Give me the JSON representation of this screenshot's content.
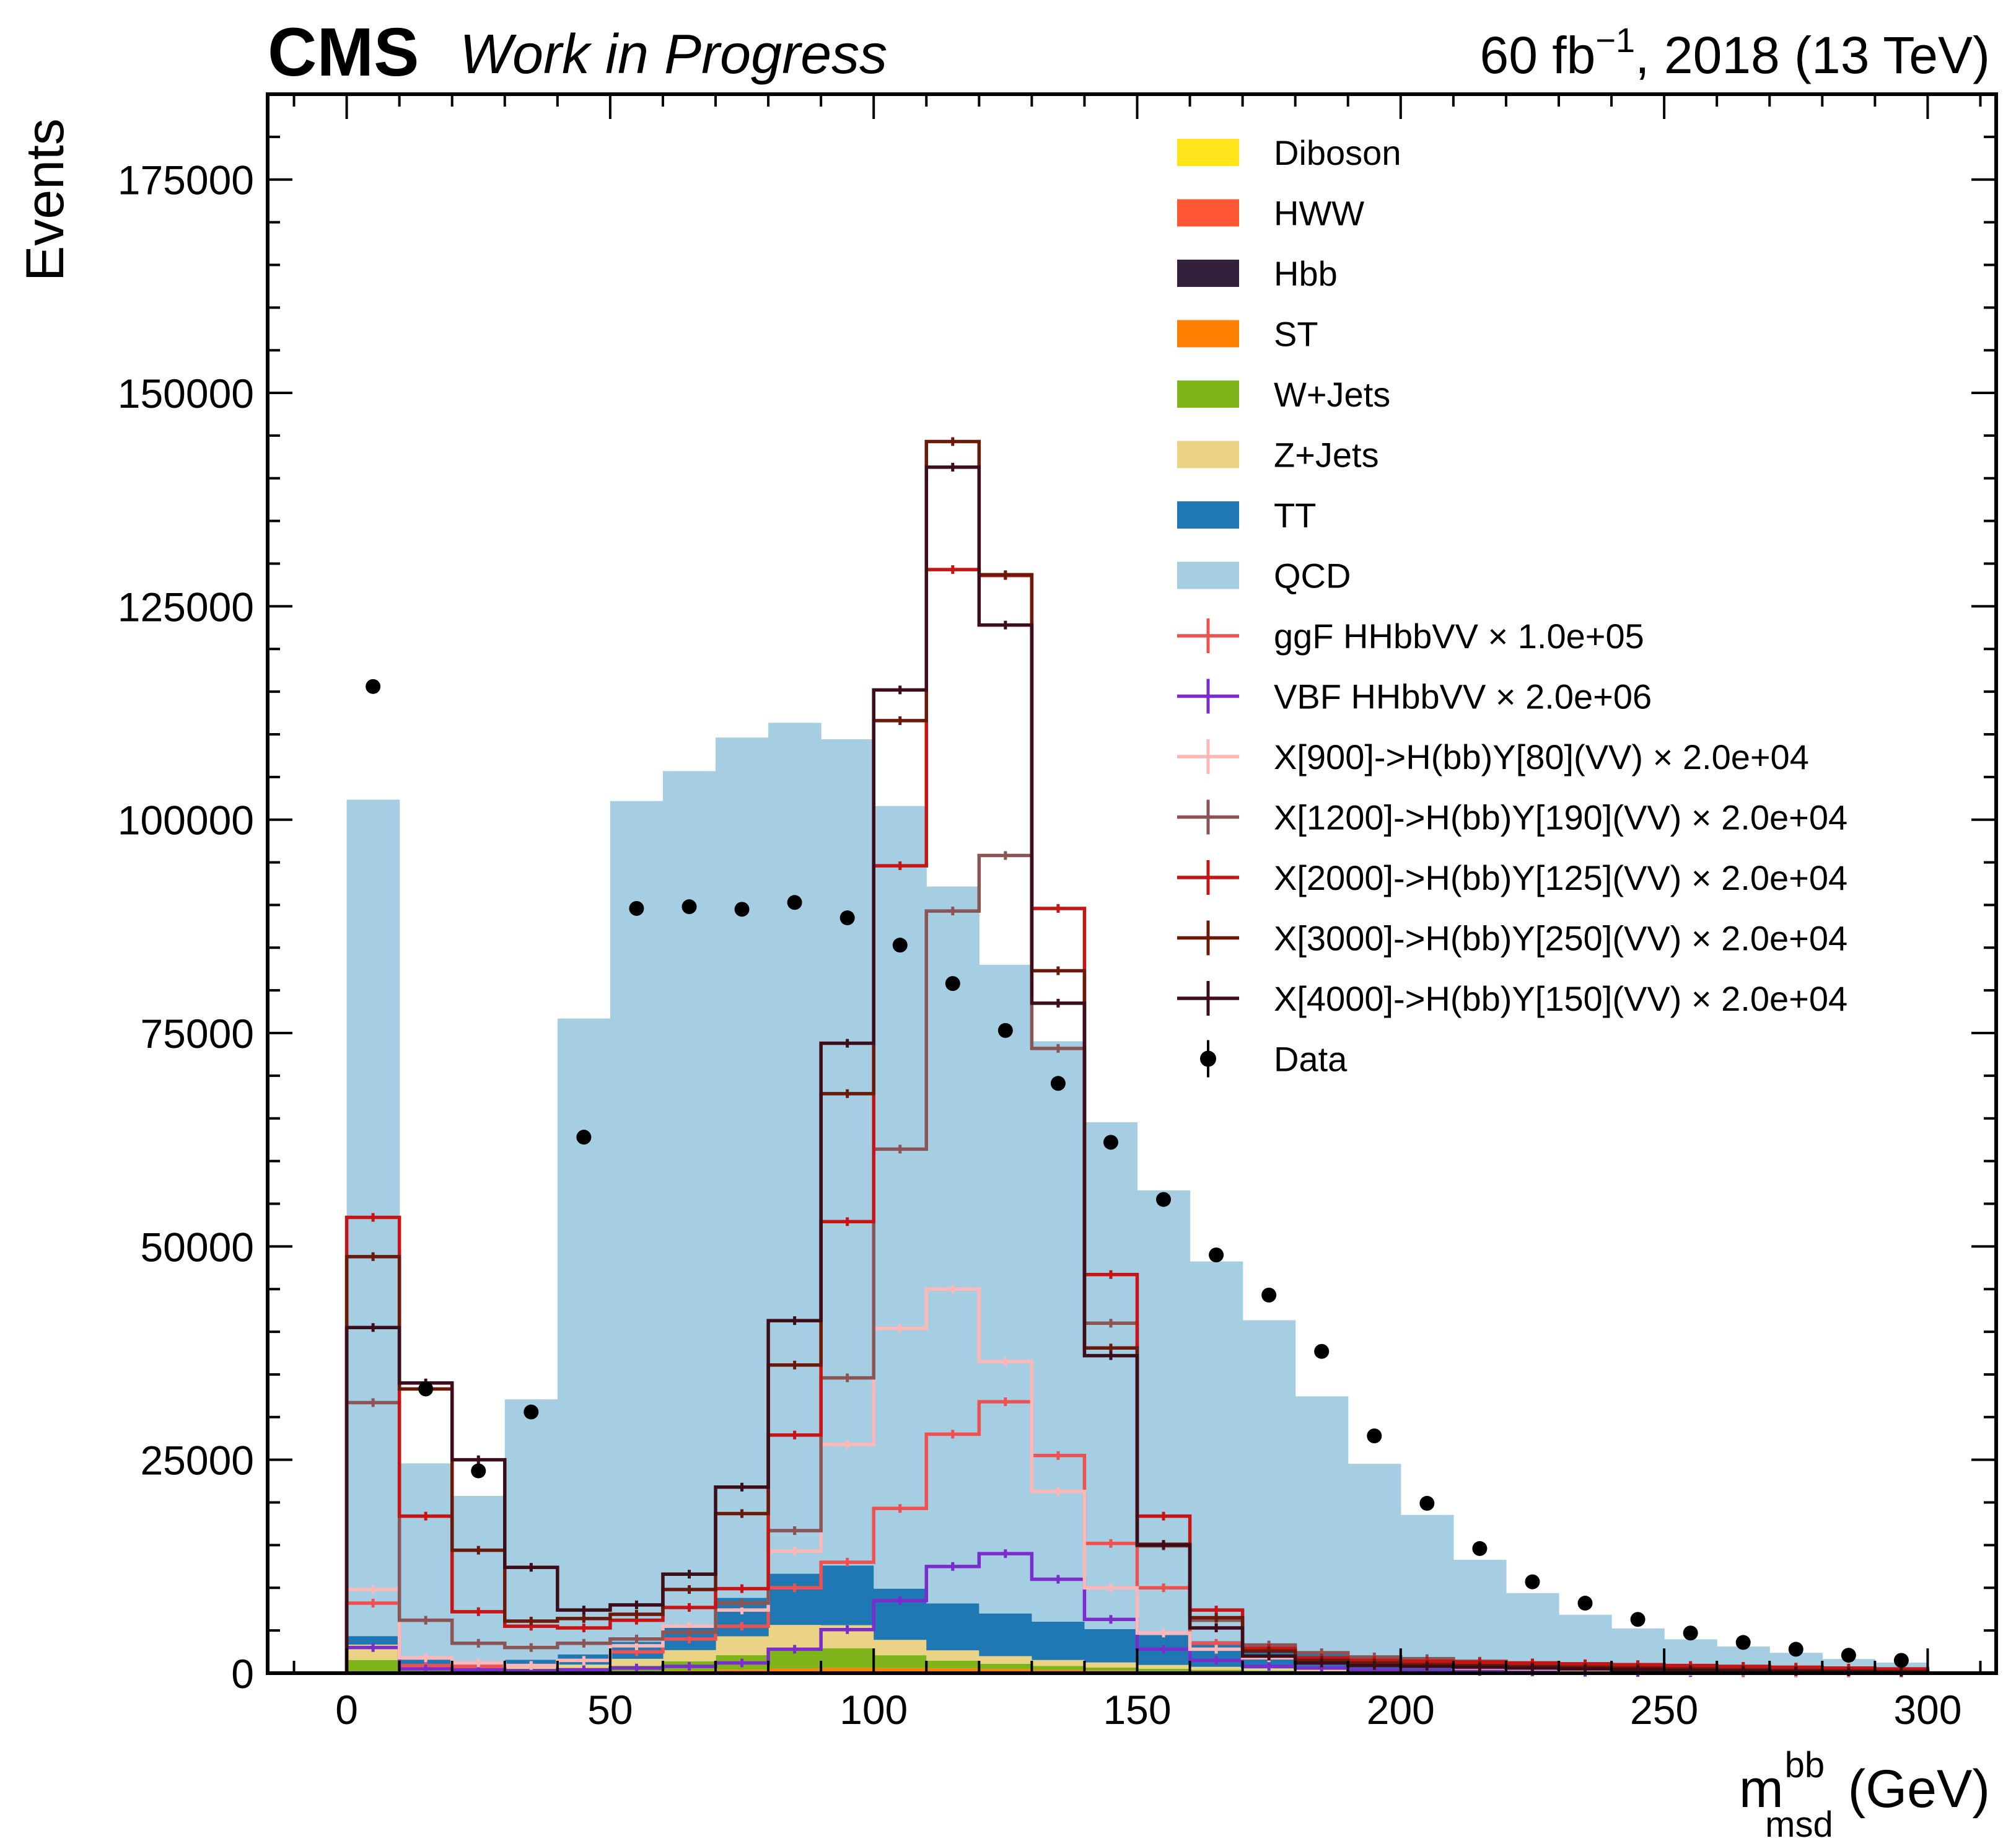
{
  "header": {
    "experiment": "CMS",
    "status": "Work in Progress",
    "lumi_prefix": "60 fb",
    "lumi_sup": "−1",
    "lumi_suffix": ", 2018 (13 TeV)"
  },
  "chart_data": {
    "type": "histogram",
    "title": "",
    "xlabel_main": "m",
    "xlabel_sup": "bb",
    "xlabel_sub": "msd",
    "xlabel_unit": " (GeV)",
    "ylabel": "Events",
    "xlim": [
      -15,
      313
    ],
    "ylim": [
      0,
      185000
    ],
    "x_ticks": [
      0,
      50,
      100,
      150,
      200,
      250,
      300
    ],
    "y_ticks": [
      0,
      25000,
      50000,
      75000,
      100000,
      125000,
      150000,
      175000
    ],
    "bin_edges": [
      0,
      10,
      20,
      30,
      40,
      50,
      60,
      70,
      80,
      90,
      100,
      110,
      120,
      130,
      140,
      150,
      160,
      170,
      180,
      190,
      200,
      210,
      220,
      230,
      240,
      250,
      260,
      270,
      280,
      290,
      300
    ],
    "stack_order": [
      "Diboson",
      "HWW",
      "Hbb",
      "ST",
      "W+Jets",
      "Z+Jets",
      "TT",
      "QCD"
    ],
    "backgrounds": [
      {
        "name": "QCD",
        "color": "#a6cee3",
        "values": [
          98000,
          23000,
          19500,
          30500,
          74500,
          98500,
          100000,
          100800,
          99700,
          96800,
          91700,
          84000,
          76000,
          68000,
          59400,
          52100,
          44500,
          38300,
          30000,
          22700,
          17300,
          12500,
          8900,
          6500,
          5000,
          3800,
          3000,
          2300,
          1600,
          1200
        ]
      },
      {
        "name": "TT",
        "color": "#1f78b4",
        "values": [
          1000,
          500,
          400,
          700,
          1200,
          2000,
          3000,
          4500,
          6000,
          7000,
          6000,
          5500,
          5000,
          4500,
          3900,
          3500,
          3000,
          2500,
          2000,
          1500,
          1000,
          600,
          350,
          250,
          180,
          120,
          90,
          60,
          40,
          30
        ]
      },
      {
        "name": "Z+Jets",
        "color": "#ebd386",
        "values": [
          1800,
          600,
          500,
          500,
          500,
          800,
          1300,
          2200,
          2800,
          2700,
          1800,
          1200,
          900,
          700,
          600,
          450,
          350,
          250,
          200,
          150,
          100,
          80,
          60,
          40,
          30,
          20,
          15,
          10,
          8,
          5
        ]
      },
      {
        "name": "W+Jets",
        "color": "#7fb51b",
        "values": [
          1400,
          400,
          300,
          300,
          400,
          700,
          1100,
          1700,
          2300,
          2300,
          1500,
          900,
          600,
          450,
          350,
          280,
          220,
          170,
          130,
          100,
          80,
          60,
          40,
          30,
          20,
          15,
          10,
          8,
          6,
          4
        ]
      },
      {
        "name": "ST",
        "color": "#ff7f00",
        "values": [
          100,
          60,
          50,
          60,
          80,
          150,
          250,
          350,
          450,
          500,
          450,
          400,
          350,
          300,
          250,
          200,
          150,
          120,
          90,
          70,
          50,
          35,
          25,
          18,
          12,
          8,
          6,
          4,
          3,
          2
        ]
      },
      {
        "name": "Hbb",
        "color": "#33203d",
        "values": [
          8,
          6,
          5,
          5,
          6,
          8,
          10,
          15,
          20,
          30,
          60,
          80,
          70,
          40,
          20,
          10,
          6,
          4,
          3,
          2,
          1,
          1,
          1,
          1,
          0,
          0,
          0,
          0,
          0,
          0
        ]
      },
      {
        "name": "HWW",
        "color": "#ff5733",
        "values": [
          8,
          6,
          5,
          5,
          6,
          8,
          10,
          15,
          20,
          30,
          50,
          60,
          50,
          30,
          20,
          10,
          6,
          4,
          3,
          2,
          1,
          1,
          1,
          1,
          0,
          0,
          0,
          0,
          0,
          0
        ]
      },
      {
        "name": "Diboson",
        "color": "#ffe41b",
        "values": [
          30,
          10,
          8,
          8,
          10,
          15,
          25,
          40,
          60,
          60,
          40,
          30,
          25,
          20,
          15,
          12,
          10,
          8,
          6,
          5,
          4,
          3,
          2,
          2,
          1,
          1,
          1,
          1,
          0,
          0
        ]
      }
    ],
    "signals": [
      {
        "name": "ggF HHbbVV × 1.0e+05",
        "color": "#ef5050",
        "values": [
          8200,
          900,
          800,
          900,
          1500,
          2500,
          4000,
          5500,
          10000,
          13000,
          19300,
          28000,
          31800,
          25500,
          15200,
          10000,
          3500,
          1800,
          1500,
          1200,
          900,
          700,
          600,
          500,
          400,
          300,
          250,
          200,
          150,
          100
        ]
      },
      {
        "name": "VBF HHbbVV × 2.0e+06",
        "color": "#7a2dcc",
        "values": [
          3000,
          500,
          400,
          300,
          400,
          600,
          800,
          1200,
          2800,
          5100,
          8500,
          12500,
          14000,
          11000,
          6300,
          2800,
          1500,
          800,
          600,
          400,
          300,
          200,
          150,
          100,
          80,
          60,
          50,
          40,
          30,
          20
        ]
      },
      {
        "name": "X[900]->H(bb)Y[80](VV) × 2.0e+04",
        "color": "#ffb6b6",
        "values": [
          9800,
          1800,
          1200,
          900,
          1500,
          3200,
          5500,
          7400,
          14300,
          26800,
          40400,
          45000,
          36500,
          21300,
          10000,
          4700,
          2800,
          1800,
          1300,
          1000,
          800,
          600,
          500,
          400,
          300,
          200,
          150,
          100,
          80,
          50
        ]
      },
      {
        "name": "X[1200]->H(bb)Y[190](VV) × 2.0e+04",
        "color": "#8c5555",
        "values": [
          31700,
          6200,
          3500,
          3000,
          3500,
          4000,
          4800,
          8200,
          16700,
          34600,
          61400,
          89300,
          95800,
          73200,
          41000,
          14900,
          6200,
          3300,
          2400,
          1900,
          1700,
          1400,
          1200,
          1000,
          800,
          700,
          600,
          500,
          400,
          300
        ]
      },
      {
        "name": "X[2000]->H(bb)Y[125](VV) × 2.0e+04",
        "color": "#c81414",
        "values": [
          53400,
          18400,
          7200,
          5500,
          5300,
          6200,
          7700,
          9900,
          27900,
          52900,
          94600,
          129300,
          128600,
          89600,
          46700,
          18400,
          7400,
          2900,
          1800,
          1500,
          1400,
          1300,
          1200,
          1100,
          1000,
          900,
          800,
          700,
          600,
          500
        ]
      },
      {
        "name": "X[3000]->H(bb)Y[250](VV) × 2.0e+04",
        "color": "#6b1a0a",
        "values": [
          48800,
          33300,
          14400,
          6100,
          6400,
          6900,
          9800,
          18700,
          36100,
          67900,
          111600,
          144300,
          128700,
          82300,
          38100,
          15100,
          6500,
          2600,
          1500,
          1200,
          1000,
          900,
          800,
          700,
          600,
          500,
          400,
          300,
          250,
          200
        ]
      },
      {
        "name": "X[4000]->H(bb)Y[150](VV) × 2.0e+04",
        "color": "#3d0d1a",
        "values": [
          40500,
          34000,
          25000,
          12400,
          7400,
          8000,
          11600,
          21800,
          41300,
          73800,
          115200,
          141300,
          122800,
          78500,
          37200,
          15000,
          5300,
          2000,
          1200,
          900,
          800,
          700,
          600,
          500,
          400,
          300,
          250,
          200,
          150,
          100
        ]
      }
    ],
    "data": {
      "name": "Data",
      "x": [
        5,
        15,
        25,
        35,
        45,
        55,
        65,
        75,
        85,
        95,
        105,
        115,
        125,
        135,
        145,
        155,
        165,
        175,
        185,
        195,
        205,
        215,
        225,
        235,
        245,
        255,
        265,
        275,
        285,
        295
      ],
      "y": [
        115600,
        33300,
        23700,
        30600,
        62800,
        89600,
        89800,
        89500,
        90300,
        88500,
        85300,
        80800,
        75300,
        69100,
        62200,
        55500,
        49000,
        44300,
        37700,
        27800,
        19900,
        14600,
        10700,
        8200,
        6300,
        4700,
        3600,
        2800,
        2100,
        1500
      ]
    },
    "legend_position": "top-right"
  }
}
